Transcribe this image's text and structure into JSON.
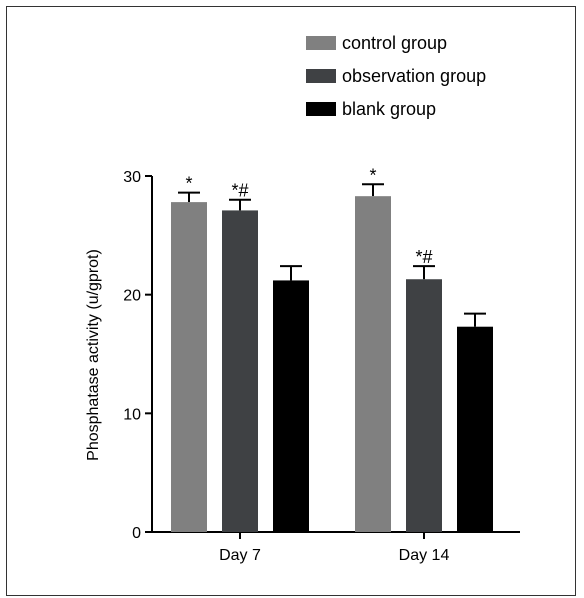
{
  "chart_data": {
    "type": "bar",
    "categories": [
      "Day 7",
      "Day 14"
    ],
    "ylabel": "Phosphatase activity (u/gprot)",
    "xlabel": "",
    "ylim": [
      0,
      30
    ],
    "yticks": [
      0,
      10,
      20,
      30
    ],
    "series": [
      {
        "name": "control group",
        "color": "#808080",
        "values": [
          27.8,
          28.3
        ],
        "errors": [
          0.8,
          1.0
        ],
        "annotations": [
          "*",
          "*"
        ]
      },
      {
        "name": "observation group",
        "color": "#3f4144",
        "values": [
          27.1,
          21.3
        ],
        "errors": [
          0.9,
          1.1
        ],
        "annotations": [
          "*#",
          "*#"
        ]
      },
      {
        "name": "blank group",
        "color": "#000000",
        "values": [
          21.2,
          17.3
        ],
        "errors": [
          1.2,
          1.1
        ],
        "annotations": [
          "",
          ""
        ]
      }
    ],
    "legend_position": "top-right",
    "grid": false
  }
}
